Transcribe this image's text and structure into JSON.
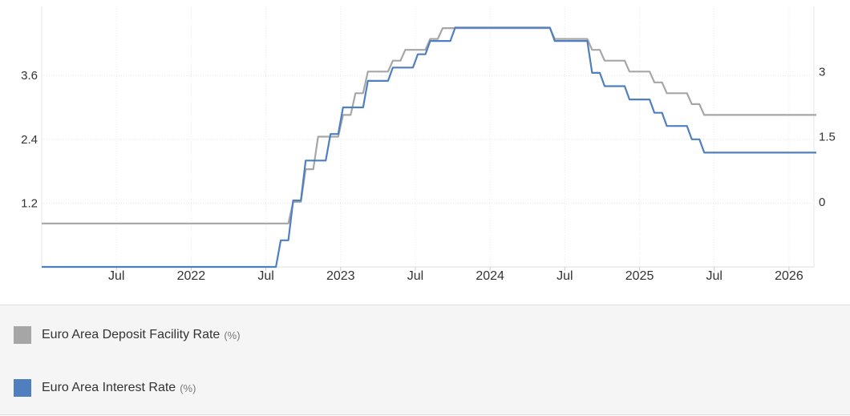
{
  "chart_data": {
    "type": "line",
    "title": "",
    "x_ticks": [
      "Jul",
      "2022",
      "Jul",
      "2023",
      "Jul",
      "2024",
      "Jul",
      "2025",
      "Jul",
      "2026"
    ],
    "x_tick_dates": [
      "2021-07",
      "2022-01",
      "2022-07",
      "2023-01",
      "2023-07",
      "2024-01",
      "2024-07",
      "2025-01",
      "2025-07",
      "2026-01"
    ],
    "x_range": [
      "2021-01",
      "2026-03"
    ],
    "y_left": {
      "ticks": [
        "1.2",
        "2.4",
        "3.6"
      ],
      "tick_values": [
        1.2,
        2.4,
        3.6
      ],
      "range": [
        0,
        4.9
      ]
    },
    "y_right": {
      "ticks": [
        "0",
        "1.5",
        "3"
      ],
      "tick_values": [
        0,
        1.5,
        3
      ],
      "range": [
        -1.5,
        4.5
      ]
    },
    "grid": true,
    "legend_position": "bottom",
    "series": [
      {
        "name": "Euro Area Deposit Facility Rate",
        "unit": "(%)",
        "color": "#a6a6a6",
        "axis": "right",
        "points": [
          [
            "2021-01",
            -0.5
          ],
          [
            "2022-07",
            -0.5
          ],
          [
            "2022-09",
            0.0
          ],
          [
            "2022-10",
            0.75
          ],
          [
            "2022-11",
            1.5
          ],
          [
            "2023-01",
            2.0
          ],
          [
            "2023-02",
            2.5
          ],
          [
            "2023-03",
            3.0
          ],
          [
            "2023-05",
            3.25
          ],
          [
            "2023-06",
            3.5
          ],
          [
            "2023-08",
            3.75
          ],
          [
            "2023-09",
            4.0
          ],
          [
            "2024-06",
            3.75
          ],
          [
            "2024-09",
            3.5
          ],
          [
            "2024-10",
            3.25
          ],
          [
            "2024-12",
            3.0
          ],
          [
            "2025-02",
            2.75
          ],
          [
            "2025-03",
            2.5
          ],
          [
            "2025-05",
            2.25
          ],
          [
            "2025-06",
            2.0
          ],
          [
            "2026-03",
            2.0
          ]
        ]
      },
      {
        "name": "Euro Area Interest Rate",
        "unit": "(%)",
        "color": "#4f7fbf",
        "axis": "left",
        "points": [
          [
            "2021-01",
            0.0
          ],
          [
            "2022-07",
            0.0
          ],
          [
            "2022-08",
            0.5
          ],
          [
            "2022-09",
            1.25
          ],
          [
            "2022-10",
            2.0
          ],
          [
            "2022-12",
            2.5
          ],
          [
            "2023-01",
            3.0
          ],
          [
            "2023-03",
            3.5
          ],
          [
            "2023-05",
            3.75
          ],
          [
            "2023-07",
            4.0
          ],
          [
            "2023-08",
            4.25
          ],
          [
            "2023-10",
            4.5
          ],
          [
            "2024-06",
            4.25
          ],
          [
            "2024-09",
            3.65
          ],
          [
            "2024-10",
            3.4
          ],
          [
            "2024-12",
            3.15
          ],
          [
            "2025-02",
            2.9
          ],
          [
            "2025-03",
            2.65
          ],
          [
            "2025-05",
            2.4
          ],
          [
            "2025-06",
            2.15
          ],
          [
            "2026-03",
            2.15
          ]
        ]
      }
    ]
  }
}
